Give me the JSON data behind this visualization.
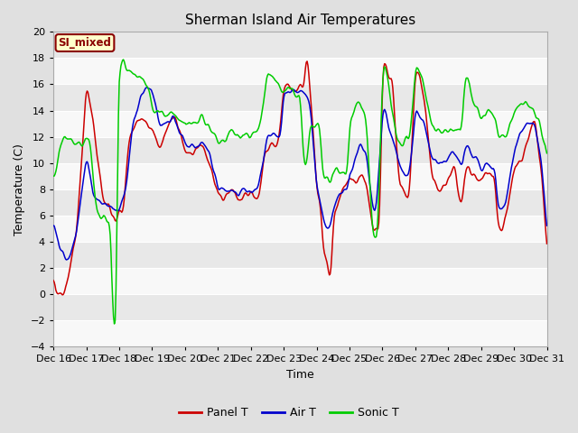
{
  "title": "Sherman Island Air Temperatures",
  "xlabel": "Time",
  "ylabel": "Temperature (C)",
  "ylim": [
    -4,
    20
  ],
  "yticks": [
    -4,
    -2,
    0,
    2,
    4,
    6,
    8,
    10,
    12,
    14,
    16,
    18,
    20
  ],
  "date_labels": [
    "Dec 16",
    "Dec 17",
    "Dec 18",
    "Dec 19",
    "Dec 20",
    "Dec 21",
    "Dec 22",
    "Dec 23",
    "Dec 24",
    "Dec 25",
    "Dec 26",
    "Dec 27",
    "Dec 28",
    "Dec 29",
    "Dec 30",
    "Dec 31"
  ],
  "panel_T_color": "#cc0000",
  "air_T_color": "#0000cc",
  "sonic_T_color": "#00cc00",
  "fig_bg_color": "#e0e0e0",
  "plot_bg_color": "#e8e8e8",
  "band_color_1": "#e8e8e8",
  "band_color_2": "#f8f8f8",
  "grid_color": "#ffffff",
  "legend_bg": "#ffffcc",
  "legend_border": "#8b0000",
  "label_color": "#8b0000",
  "annotation_text": "SI_mixed",
  "legend_labels": [
    "Panel T",
    "Air T",
    "Sonic T"
  ],
  "title_fontsize": 11,
  "axis_label_fontsize": 9,
  "tick_fontsize": 8
}
